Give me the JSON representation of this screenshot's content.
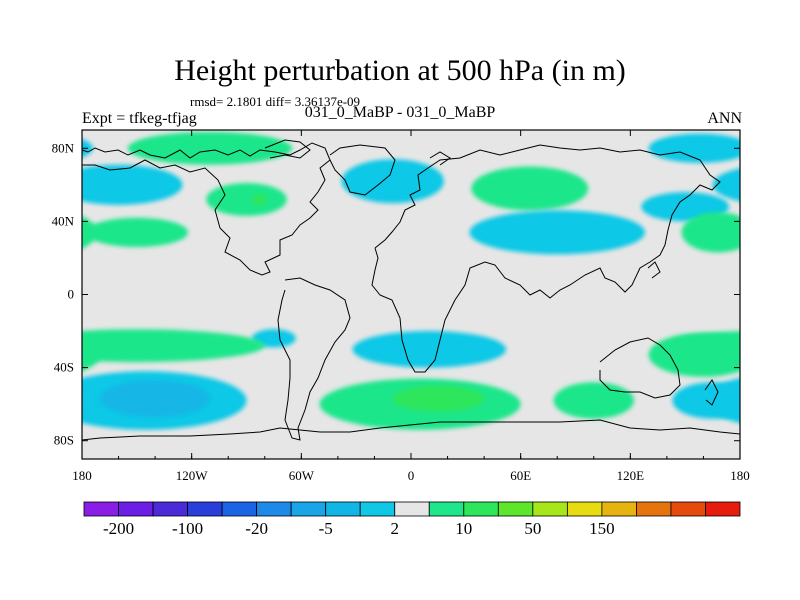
{
  "chart_data": {
    "type": "heatmap",
    "title": "Height perturbation at 500 hPa (in m)",
    "stats": "rmsd= 2.1801 diff= 3.36137e-09",
    "left_label": "Expt = tfkeg-tfjag",
    "center_label": "031_0_MaBP - 031_0_MaBP",
    "right_label": "ANN",
    "x_range": [
      -180,
      180
    ],
    "y_range": [
      -90,
      90
    ],
    "x_ticks": [
      {
        "value": -180,
        "label": "180"
      },
      {
        "value": -120,
        "label": "120W"
      },
      {
        "value": -60,
        "label": "60W"
      },
      {
        "value": 0,
        "label": "0"
      },
      {
        "value": 60,
        "label": "60E"
      },
      {
        "value": 120,
        "label": "120E"
      },
      {
        "value": 180,
        "label": "180"
      }
    ],
    "y_ticks": [
      {
        "value": 80,
        "label": "80N"
      },
      {
        "value": 40,
        "label": "40N"
      },
      {
        "value": 0,
        "label": "0"
      },
      {
        "value": -40,
        "label": "40S"
      },
      {
        "value": -80,
        "label": "80S"
      }
    ],
    "background_color": "#e6e6e6",
    "levels": [
      {
        "color": "#8a1ee6",
        "label": ""
      },
      {
        "color": "#6a1ee6",
        "label": "-200"
      },
      {
        "color": "#4a2ad9",
        "label": ""
      },
      {
        "color": "#2a3ed9",
        "label": "-100"
      },
      {
        "color": "#1c64e6",
        "label": ""
      },
      {
        "color": "#1c8ae6",
        "label": "-20"
      },
      {
        "color": "#1aa6e6",
        "label": ""
      },
      {
        "color": "#12b6e6",
        "label": "-5"
      },
      {
        "color": "#10c8e6",
        "label": ""
      },
      {
        "color": "#e6e6e6",
        "label": "2"
      },
      {
        "color": "#1ee68a",
        "label": ""
      },
      {
        "color": "#2ee65c",
        "label": "10"
      },
      {
        "color": "#5ee62a",
        "label": ""
      },
      {
        "color": "#a8e61c",
        "label": "50"
      },
      {
        "color": "#e6dc10",
        "label": ""
      },
      {
        "color": "#e6b410",
        "label": "150"
      },
      {
        "color": "#e6740c",
        "label": ""
      },
      {
        "color": "#e64a0c",
        "label": ""
      },
      {
        "color": "#e61c0c",
        "label": ""
      }
    ],
    "anomalies": [
      {
        "lon": -110,
        "lat": 80,
        "rx": 45,
        "ry": 9,
        "level": 10
      },
      {
        "lon": -90,
        "lat": 52,
        "rx": 22,
        "ry": 9,
        "level": 10
      },
      {
        "lon": -83,
        "lat": 52,
        "rx": 4,
        "ry": 3,
        "level": 11
      },
      {
        "lon": -160,
        "lat": 60,
        "rx": 35,
        "ry": 11,
        "level": 8
      },
      {
        "lon": -150,
        "lat": 34,
        "rx": 28,
        "ry": 8,
        "level": 10
      },
      {
        "lon": -10,
        "lat": 62,
        "rx": 28,
        "ry": 12,
        "level": 8
      },
      {
        "lon": 65,
        "lat": 58,
        "rx": 32,
        "ry": 12,
        "level": 10
      },
      {
        "lon": 80,
        "lat": 34,
        "rx": 48,
        "ry": 12,
        "level": 8
      },
      {
        "lon": 158,
        "lat": 80,
        "rx": 28,
        "ry": 8,
        "level": 8
      },
      {
        "lon": 150,
        "lat": 48,
        "rx": 24,
        "ry": 8,
        "level": 8
      },
      {
        "lon": 168,
        "lat": 34,
        "rx": 20,
        "ry": 11,
        "level": 10
      },
      {
        "lon": -75,
        "lat": -24,
        "rx": 12,
        "ry": 5,
        "level": 8
      },
      {
        "lon": 10,
        "lat": -30,
        "rx": 42,
        "ry": 10,
        "level": 8
      },
      {
        "lon": -150,
        "lat": -28,
        "rx": 70,
        "ry": 9,
        "level": 10
      },
      {
        "lon": 160,
        "lat": -33,
        "rx": 30,
        "ry": 12,
        "level": 10
      },
      {
        "lon": -145,
        "lat": -58,
        "rx": 55,
        "ry": 16,
        "level": 8
      },
      {
        "lon": -140,
        "lat": -57,
        "rx": 30,
        "ry": 10,
        "level": 7
      },
      {
        "lon": 5,
        "lat": -60,
        "rx": 55,
        "ry": 14,
        "level": 10
      },
      {
        "lon": 15,
        "lat": -57,
        "rx": 25,
        "ry": 7,
        "level": 11
      },
      {
        "lon": 100,
        "lat": -58,
        "rx": 22,
        "ry": 10,
        "level": 10
      },
      {
        "lon": 165,
        "lat": -58,
        "rx": 22,
        "ry": 10,
        "level": 8
      }
    ]
  }
}
